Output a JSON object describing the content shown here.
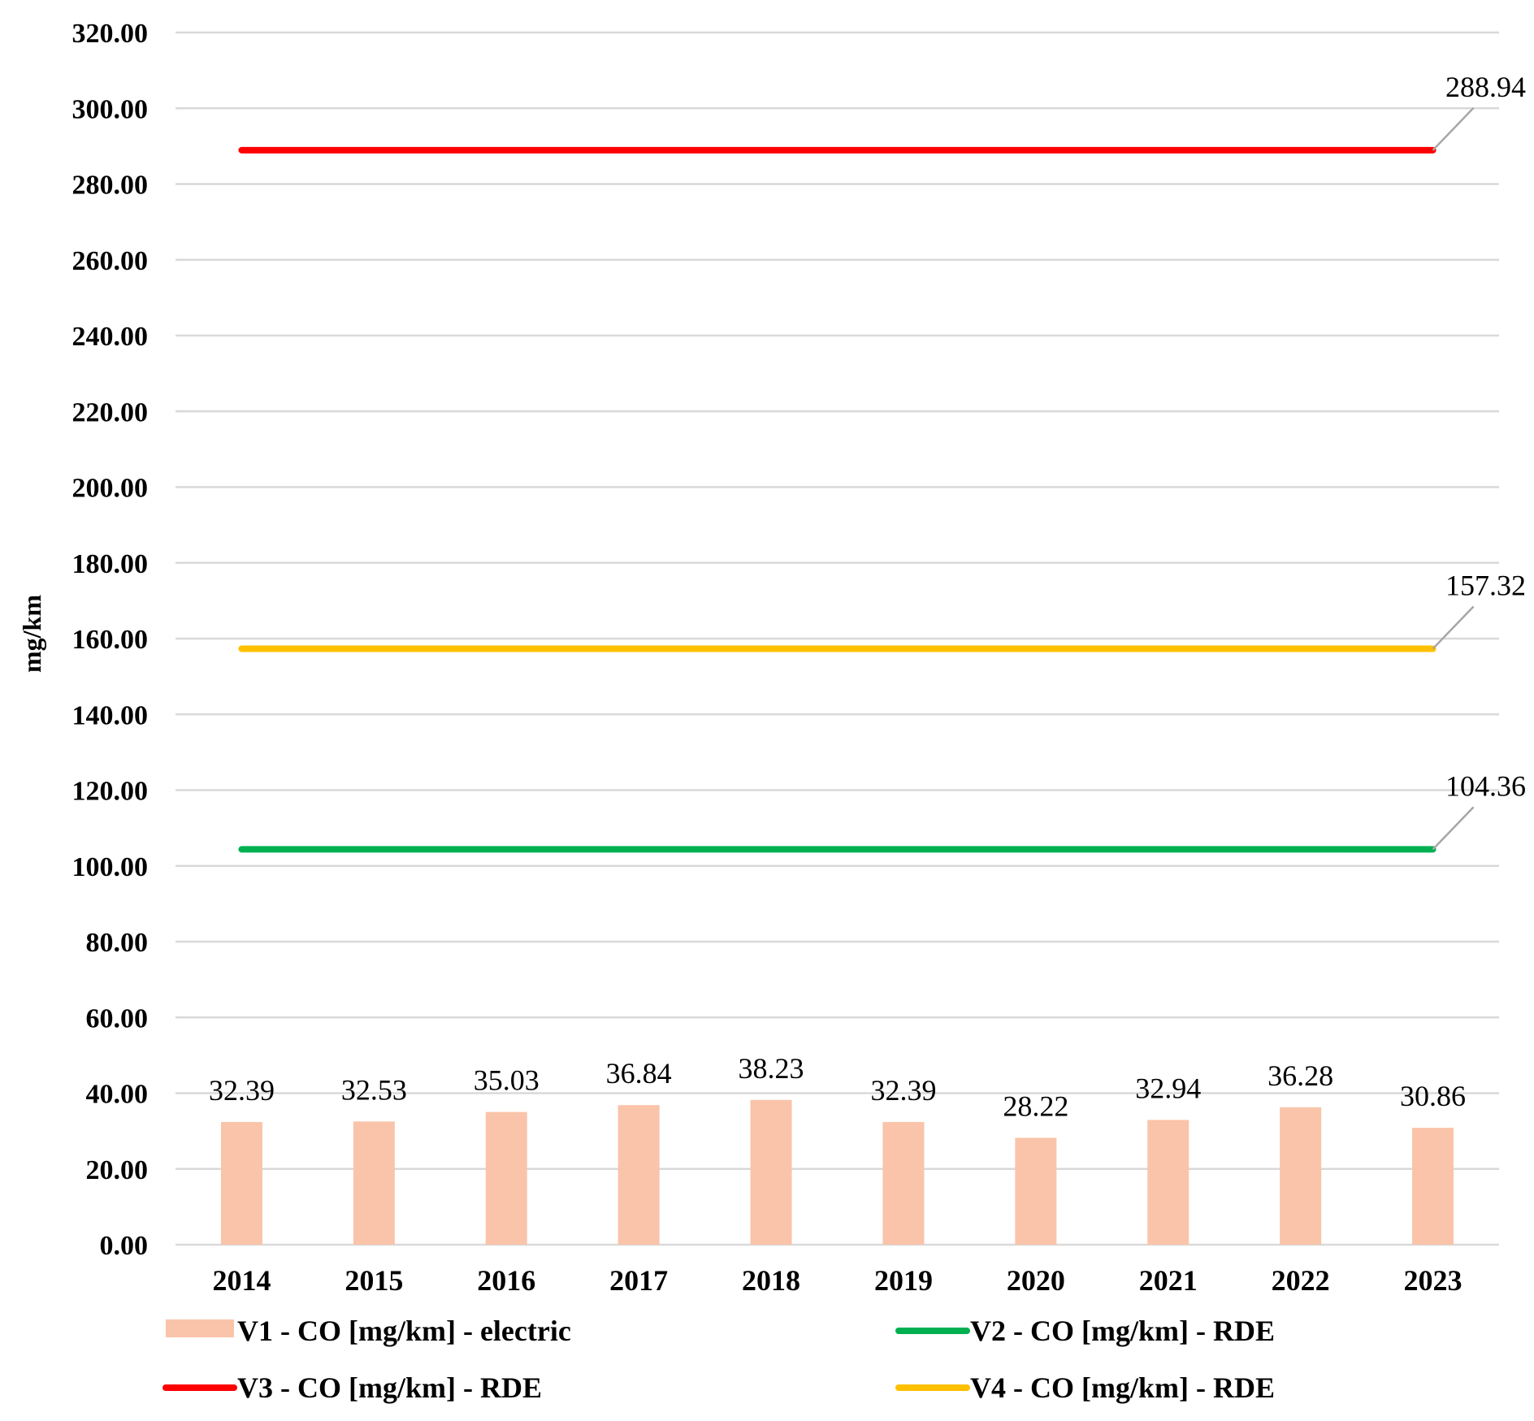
{
  "chart_data": {
    "type": "bar+line",
    "categories": [
      "2014",
      "2015",
      "2016",
      "2017",
      "2018",
      "2019",
      "2020",
      "2021",
      "2022",
      "2023"
    ],
    "ylabel": "mg/km",
    "ylim": [
      0,
      320
    ],
    "ytick_step": 20,
    "ytick_labels": [
      "0.00",
      "20.00",
      "40.00",
      "60.00",
      "80.00",
      "100.00",
      "120.00",
      "140.00",
      "160.00",
      "180.00",
      "200.00",
      "220.00",
      "240.00",
      "260.00",
      "280.00",
      "300.00",
      "320.00"
    ],
    "grid": true,
    "legend_position": "bottom",
    "series": [
      {
        "name": "V1 - CO [mg/km] - electric",
        "kind": "bar",
        "color": "#FAC4AA",
        "values": [
          32.39,
          32.53,
          35.03,
          36.84,
          38.23,
          32.39,
          28.22,
          32.94,
          36.28,
          30.86
        ],
        "value_labels": [
          "32.39",
          "32.53",
          "35.03",
          "36.84",
          "38.23",
          "32.39",
          "28.22",
          "32.94",
          "36.28",
          "30.86"
        ]
      },
      {
        "name": "V2 -  CO [mg/km] - RDE",
        "kind": "line",
        "color": "#00B050",
        "values": [
          104.36,
          104.36,
          104.36,
          104.36,
          104.36,
          104.36,
          104.36,
          104.36,
          104.36,
          104.36
        ],
        "end_label": "104.36"
      },
      {
        "name": "V3 -  CO [mg/km] - RDE",
        "kind": "line",
        "color": "#FF0000",
        "values": [
          288.94,
          288.94,
          288.94,
          288.94,
          288.94,
          288.94,
          288.94,
          288.94,
          288.94,
          288.94
        ],
        "end_label": "288.94"
      },
      {
        "name": "V4 -  CO [mg/km] - RDE",
        "kind": "line",
        "color": "#FFC000",
        "values": [
          157.32,
          157.32,
          157.32,
          157.32,
          157.32,
          157.32,
          157.32,
          157.32,
          157.32,
          157.32
        ],
        "end_label": "157.32"
      }
    ]
  }
}
